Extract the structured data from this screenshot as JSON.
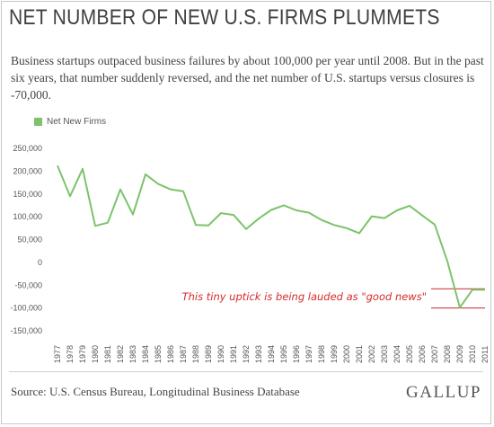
{
  "header": {
    "title": "NET NUMBER OF NEW U.S. FIRMS PLUMMETS",
    "subtitle": "Business startups outpaced business failures by about 100,000 per year until 2008. But in the past six years, that number suddenly reversed, and the net number of U.S. startups versus closures is -70,000."
  },
  "footer": {
    "source": "Source: U.S. Census Bureau, Longitudinal Business Database",
    "brand": "GALLUP"
  },
  "chart_data": {
    "type": "line",
    "title": "NET NUMBER OF NEW U.S. FIRMS PLUMMETS",
    "xlabel": "",
    "ylabel": "",
    "ylim": [
      -150000,
      250000
    ],
    "grid": false,
    "legend": "top-left",
    "y_tick_labels": [
      "250,000",
      "200,000",
      "150,000",
      "100,000",
      "50,000",
      "0",
      "-50,000",
      "-100,000",
      "-150,000"
    ],
    "y_tick_values": [
      250000,
      200000,
      150000,
      100000,
      50000,
      0,
      -50000,
      -100000,
      -150000
    ],
    "x": [
      "1977",
      "1978",
      "1979",
      "1980",
      "1981",
      "1982",
      "1983",
      "1984",
      "1985",
      "1986",
      "1987",
      "1988",
      "1989",
      "1990",
      "1991",
      "1992",
      "1993",
      "1994",
      "1995",
      "1996",
      "1997",
      "1998",
      "1999",
      "2000",
      "2001",
      "2002",
      "2003",
      "2004",
      "2005",
      "2006",
      "2007",
      "2008",
      "2009",
      "2010",
      "2011"
    ],
    "series": [
      {
        "name": "Net New Firms",
        "color": "#7cc36a",
        "values": [
          212000,
          145000,
          205000,
          80000,
          87000,
          160000,
          105000,
          193000,
          172000,
          160000,
          156000,
          82000,
          81000,
          108000,
          104000,
          73000,
          96000,
          115000,
          125000,
          114000,
          109000,
          93000,
          82000,
          75000,
          64000,
          101000,
          97000,
          114000,
          124000,
          103000,
          83000,
          3000,
          -99000,
          -60000,
          -60000
        ]
      }
    ],
    "annotations": [
      {
        "text": "This tiny uptick is being lauded as \"good news\"",
        "color": "#d52a2a"
      }
    ],
    "reference_lines": [
      {
        "y": -58000,
        "color": "#c62828"
      },
      {
        "y": -100000,
        "color": "#c62828"
      }
    ]
  }
}
